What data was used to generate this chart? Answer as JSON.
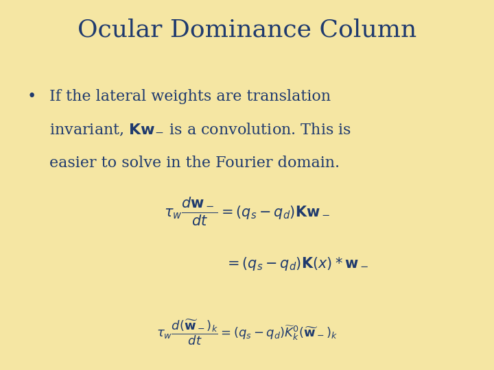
{
  "title": "Ocular Dominance Column",
  "background_color": "#F5E6A3",
  "text_color": "#1F3A6E",
  "title_fontsize": 26,
  "bullet_fontsize": 16,
  "eq_fontsize": 15,
  "eq3_fontsize": 13
}
